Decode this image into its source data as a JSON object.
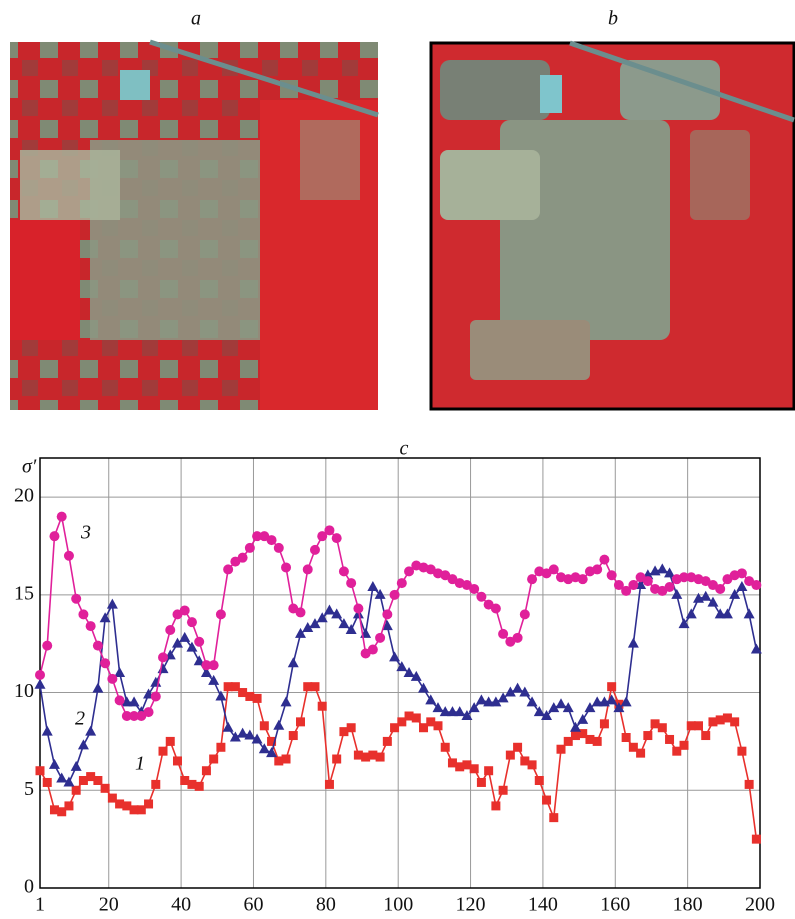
{
  "images": [
    {
      "label": "a"
    },
    {
      "label": "b"
    }
  ],
  "chart_data": {
    "type": "line",
    "title": "c",
    "y_label": "σ′",
    "x": [
      1,
      3,
      5,
      7,
      9,
      11,
      13,
      15,
      17,
      19,
      21,
      23,
      25,
      27,
      29,
      31,
      33,
      35,
      37,
      39,
      41,
      43,
      45,
      47,
      49,
      51,
      53,
      55,
      57,
      59,
      61,
      63,
      65,
      67,
      69,
      71,
      73,
      75,
      77,
      79,
      81,
      83,
      85,
      87,
      89,
      91,
      93,
      95,
      97,
      99,
      101,
      103,
      105,
      107,
      109,
      111,
      113,
      115,
      117,
      119,
      121,
      123,
      125,
      127,
      129,
      131,
      133,
      135,
      137,
      139,
      141,
      143,
      145,
      147,
      149,
      151,
      153,
      155,
      157,
      159,
      161,
      163,
      165,
      167,
      169,
      171,
      173,
      175,
      177,
      179,
      181,
      183,
      185,
      187,
      189,
      191,
      193,
      195,
      197,
      199
    ],
    "series": [
      {
        "name": "1",
        "color": "#e8302c",
        "marker": "square",
        "values": [
          6,
          5.4,
          4,
          3.9,
          4.2,
          5,
          5.5,
          5.7,
          5.5,
          5.1,
          4.6,
          4.3,
          4.2,
          4,
          4,
          4.3,
          5.3,
          7,
          7.5,
          6.5,
          5.5,
          5.3,
          5.2,
          6,
          6.6,
          7.2,
          10.3,
          10.3,
          10,
          9.8,
          9.7,
          8.3,
          7.5,
          6.5,
          6.6,
          7.8,
          8.5,
          10.3,
          10.3,
          9.3,
          5.3,
          6.6,
          8,
          8.2,
          6.8,
          6.7,
          6.8,
          6.7,
          7.5,
          8.2,
          8.5,
          8.8,
          8.7,
          8.2,
          8.5,
          8.3,
          7.2,
          6.4,
          6.2,
          6.3,
          6.1,
          5.4,
          6,
          4.2,
          5,
          6.8,
          7.2,
          6.5,
          6.3,
          5.5,
          4.5,
          3.6,
          7.1,
          7.5,
          7.8,
          7.9,
          7.6,
          7.5,
          8.4,
          10.3,
          9.4,
          7.7,
          7.2,
          6.9,
          7.8,
          8.4,
          8.2,
          7.6,
          7,
          7.3,
          8.3,
          8.3,
          7.8,
          8.5,
          8.6,
          8.7,
          8.5,
          7,
          5.3,
          2.5
        ]
      },
      {
        "name": "2",
        "color": "#2e2e90",
        "marker": "triangle",
        "values": [
          10.4,
          8,
          6.3,
          5.6,
          5.4,
          6.2,
          7.3,
          8,
          10.2,
          13.8,
          14.5,
          11,
          9.5,
          9.5,
          9,
          9.9,
          10.5,
          11.2,
          11.9,
          12.5,
          12.8,
          12.3,
          11.6,
          11,
          10.6,
          9.8,
          8.2,
          7.7,
          7.9,
          7.8,
          7.6,
          7.1,
          6.9,
          8.3,
          9.5,
          11.5,
          13,
          13.3,
          13.5,
          13.8,
          14.2,
          14,
          13.5,
          13.2,
          14,
          13,
          15.4,
          15,
          13.4,
          11.8,
          11.3,
          11,
          10.8,
          10.2,
          9.6,
          9.2,
          9,
          9,
          9,
          8.8,
          9.2,
          9.6,
          9.5,
          9.5,
          9.7,
          10,
          10.2,
          10,
          9.5,
          9,
          8.8,
          9.2,
          9.4,
          9.2,
          8.2,
          8.6,
          9.2,
          9.5,
          9.5,
          9.6,
          9.2,
          9.5,
          12.5,
          15.5,
          16,
          16.2,
          16.3,
          16.1,
          15,
          13.5,
          14,
          14.8,
          14.9,
          14.6,
          14,
          14,
          15,
          15.4,
          14,
          12.2
        ]
      },
      {
        "name": "3",
        "color": "#e0209a",
        "marker": "circle",
        "values": [
          10.9,
          12.4,
          18,
          19,
          17,
          14.8,
          14,
          13.4,
          12.4,
          11.5,
          10.7,
          9.6,
          8.8,
          8.8,
          8.8,
          9,
          9.8,
          11.8,
          13.2,
          14,
          14.2,
          13.6,
          12.6,
          11.4,
          11.4,
          14,
          16.3,
          16.7,
          16.9,
          17.4,
          18,
          18,
          17.8,
          17.4,
          16.4,
          14.3,
          14.1,
          16.3,
          17.3,
          18,
          18.3,
          17.9,
          16.2,
          15.6,
          14.3,
          12,
          12.2,
          12.8,
          14,
          15,
          15.6,
          16.2,
          16.5,
          16.4,
          16.3,
          16.1,
          16,
          15.8,
          15.6,
          15.5,
          15.3,
          14.9,
          14.5,
          14.3,
          13,
          12.6,
          12.8,
          14,
          15.8,
          16.2,
          16.1,
          16.3,
          15.9,
          15.8,
          15.9,
          15.8,
          16.2,
          16.3,
          16.8,
          16,
          15.5,
          15.2,
          15.5,
          15.9,
          15.7,
          15.3,
          15.2,
          15.4,
          15.8,
          15.9,
          15.9,
          15.8,
          15.7,
          15.5,
          15.3,
          15.8,
          16,
          16.1,
          15.7,
          15.5
        ]
      }
    ],
    "xlim": [
      1,
      200
    ],
    "xticks": [
      1,
      20,
      40,
      60,
      80,
      100,
      120,
      140,
      160,
      180,
      200
    ],
    "ylim": [
      0,
      22
    ],
    "yticks": [
      0,
      5,
      10,
      15,
      20
    ],
    "grid": true
  }
}
